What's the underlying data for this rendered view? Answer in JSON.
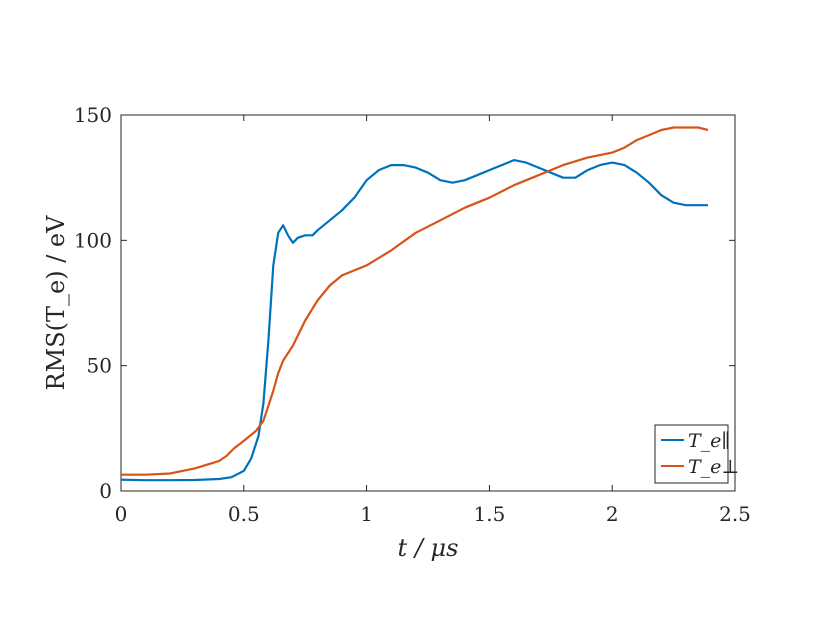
{
  "chart_data": {
    "type": "line",
    "xlabel": "t / μs",
    "ylabel": "RMS(T_e) / eV",
    "xlim": [
      0,
      2.5
    ],
    "ylim": [
      0,
      150
    ],
    "xticks": [
      "0",
      "0.5",
      "1",
      "1.5",
      "2",
      "2.5"
    ],
    "yticks": [
      "0",
      "50",
      "100",
      "150"
    ],
    "grid": false,
    "legend_position": "bottom-right",
    "series": [
      {
        "name": "T_e∥",
        "color": "#0072BD",
        "x": [
          0,
          0.1,
          0.2,
          0.3,
          0.4,
          0.45,
          0.5,
          0.53,
          0.56,
          0.58,
          0.6,
          0.62,
          0.64,
          0.66,
          0.68,
          0.7,
          0.72,
          0.75,
          0.78,
          0.8,
          0.85,
          0.9,
          0.95,
          1.0,
          1.05,
          1.1,
          1.15,
          1.2,
          1.25,
          1.3,
          1.35,
          1.4,
          1.45,
          1.5,
          1.55,
          1.6,
          1.65,
          1.7,
          1.75,
          1.8,
          1.85,
          1.9,
          1.95,
          2.0,
          2.05,
          2.1,
          2.15,
          2.2,
          2.25,
          2.3,
          2.35,
          2.39
        ],
        "y": [
          4.5,
          4.3,
          4.3,
          4.4,
          4.8,
          5.5,
          8,
          13,
          22,
          35,
          60,
          90,
          103,
          106,
          102,
          99,
          101,
          102,
          102,
          104,
          108,
          112,
          117,
          124,
          128,
          130,
          130,
          129,
          127,
          124,
          123,
          124,
          126,
          128,
          130,
          132,
          131,
          129,
          127,
          125,
          125,
          128,
          130,
          131,
          130,
          127,
          123,
          118,
          115,
          114,
          114,
          114
        ]
      },
      {
        "name": "T_e⊥",
        "color": "#D95319",
        "x": [
          0,
          0.1,
          0.2,
          0.25,
          0.3,
          0.35,
          0.4,
          0.43,
          0.46,
          0.5,
          0.55,
          0.58,
          0.6,
          0.62,
          0.64,
          0.66,
          0.7,
          0.75,
          0.8,
          0.85,
          0.9,
          0.95,
          1.0,
          1.1,
          1.2,
          1.3,
          1.4,
          1.5,
          1.6,
          1.7,
          1.8,
          1.9,
          2.0,
          2.05,
          2.1,
          2.15,
          2.2,
          2.25,
          2.3,
          2.35,
          2.39
        ],
        "y": [
          6.5,
          6.5,
          7,
          8,
          9,
          10.5,
          12,
          14,
          17,
          20,
          24,
          28,
          34,
          40,
          47,
          52,
          58,
          68,
          76,
          82,
          86,
          88,
          90,
          96,
          103,
          108,
          113,
          117,
          122,
          126,
          130,
          133,
          135,
          137,
          140,
          142,
          144,
          145,
          145,
          145,
          144
        ]
      }
    ]
  }
}
